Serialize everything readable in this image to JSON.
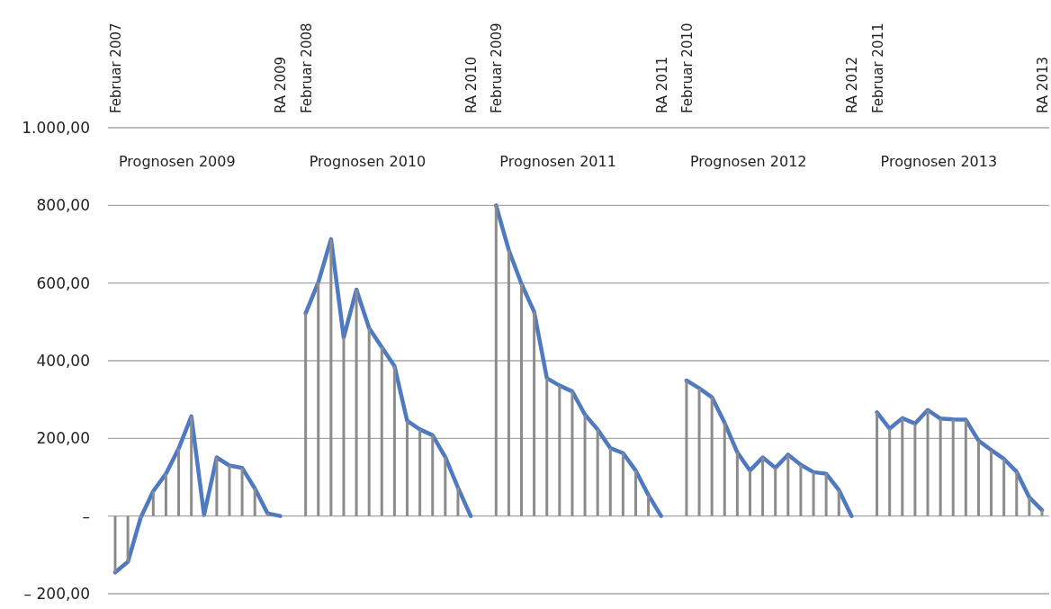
{
  "chart_data": {
    "type": "line",
    "categories": [
      "Februar 2007",
      null,
      null,
      null,
      null,
      null,
      null,
      null,
      null,
      null,
      null,
      null,
      null,
      "RA 2009",
      null,
      "Februar 2008",
      null,
      null,
      null,
      null,
      null,
      null,
      null,
      null,
      null,
      null,
      null,
      null,
      "RA 2010",
      null,
      "Februar 2009",
      null,
      null,
      null,
      null,
      null,
      null,
      null,
      null,
      null,
      null,
      null,
      null,
      "RA 2011",
      null,
      "Februar 2010",
      null,
      null,
      null,
      null,
      null,
      null,
      null,
      null,
      null,
      null,
      null,
      null,
      "RA 2012",
      null,
      "Februar 2011",
      null,
      null,
      null,
      null,
      null,
      null,
      null,
      null,
      null,
      null,
      null,
      null,
      "RA 2013"
    ],
    "series": [
      {
        "type": "bar",
        "color": "#8c8c8c",
        "values": [
          -145,
          -118,
          -5,
          64,
          109,
          174,
          257,
          3,
          151,
          130,
          124,
          71,
          7,
          0,
          null,
          522,
          602,
          713,
          460,
          583,
          484,
          435,
          386,
          245,
          223,
          208,
          152,
          73,
          0,
          null,
          800,
          685,
          598,
          526,
          355,
          336,
          321,
          261,
          223,
          175,
          162,
          117,
          54,
          0,
          null,
          349,
          329,
          306,
          240,
          164,
          117,
          151,
          124,
          158,
          132,
          113,
          109,
          67,
          0,
          null,
          267,
          225,
          252,
          238,
          273,
          251,
          249,
          248,
          194,
          170,
          147,
          114,
          48,
          15
        ]
      },
      {
        "color": "#4f79c1",
        "values": [
          -145,
          -118,
          -5,
          64,
          109,
          174,
          257,
          3,
          151,
          130,
          124,
          71,
          7,
          0,
          null,
          522,
          602,
          713,
          460,
          583,
          484,
          435,
          386,
          245,
          223,
          208,
          152,
          73,
          0,
          null,
          800,
          685,
          598,
          526,
          355,
          336,
          321,
          261,
          223,
          175,
          162,
          117,
          54,
          0,
          null,
          349,
          329,
          306,
          240,
          164,
          117,
          151,
          124,
          158,
          132,
          113,
          109,
          67,
          0,
          null,
          267,
          225,
          252,
          238,
          273,
          251,
          249,
          248,
          194,
          170,
          147,
          114,
          48,
          15
        ]
      }
    ],
    "ylim": [
      -200,
      1000
    ],
    "yticks": [
      {
        "value": 1000,
        "label": "1.000,00"
      },
      {
        "value": 800,
        "label": "800,00"
      },
      {
        "value": 600,
        "label": "600,00"
      },
      {
        "value": 400,
        "label": "400,00"
      },
      {
        "value": 200,
        "label": "200,00"
      },
      {
        "value": 0,
        "label": "–"
      },
      {
        "value": -200,
        "label": "– 200,00"
      }
    ],
    "grid": "y",
    "annotations": [
      "Prognosen 2009",
      "Prognosen 2010",
      "Prognosen 2011",
      "Prognosen 2012",
      "Prognosen 2013"
    ]
  }
}
